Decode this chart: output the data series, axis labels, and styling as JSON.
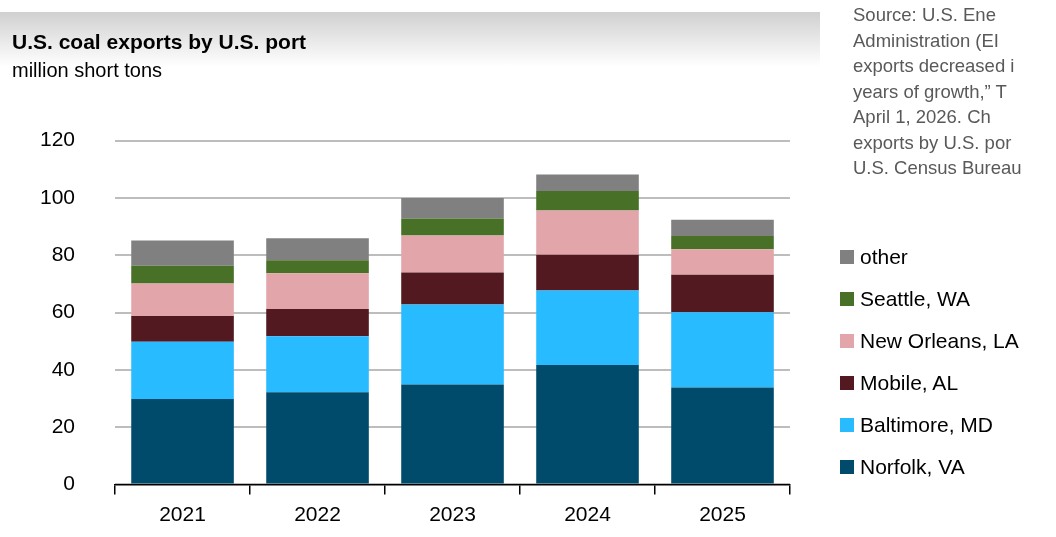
{
  "chart_data": {
    "type": "bar",
    "title": "U.S. coal exports by U.S. port",
    "subtitle": "million short tons",
    "categories": [
      "2021",
      "2022",
      "2023",
      "2024",
      "2025"
    ],
    "stacked": true,
    "grid": "y",
    "legend": "right",
    "ylim": [
      0,
      120
    ],
    "yticks": [
      0,
      20,
      40,
      60,
      80,
      100,
      120
    ],
    "annotations": [
      "Source: U.S. Ene\nAdministration (EI\nexports decreased i\nyears of growth,” T\nApril 1, 2026. Ch\nexports by U.S. por\nU.S. Census Bureau"
    ],
    "series": [
      {
        "name": "Norfolk, VA",
        "color": "#004b6b",
        "values": [
          29.8,
          32.2,
          34.9,
          41.7,
          33.8
        ]
      },
      {
        "name": "Baltimore, MD",
        "color": "#29bbff",
        "values": [
          20.0,
          19.5,
          27.9,
          26.0,
          26.3
        ]
      },
      {
        "name": "Mobile, AL",
        "color": "#521a20",
        "values": [
          9.0,
          9.5,
          11.2,
          12.5,
          13.1
        ]
      },
      {
        "name": "New Orleans, LA",
        "color": "#e2a5aa",
        "values": [
          11.3,
          12.5,
          12.9,
          15.4,
          8.9
        ]
      },
      {
        "name": "Seattle, WA",
        "color": "#487026",
        "values": [
          6.2,
          4.5,
          5.9,
          6.8,
          4.6
        ]
      },
      {
        "name": "other",
        "color": "#808080",
        "values": [
          8.8,
          7.7,
          7.2,
          5.8,
          5.7
        ]
      }
    ]
  }
}
